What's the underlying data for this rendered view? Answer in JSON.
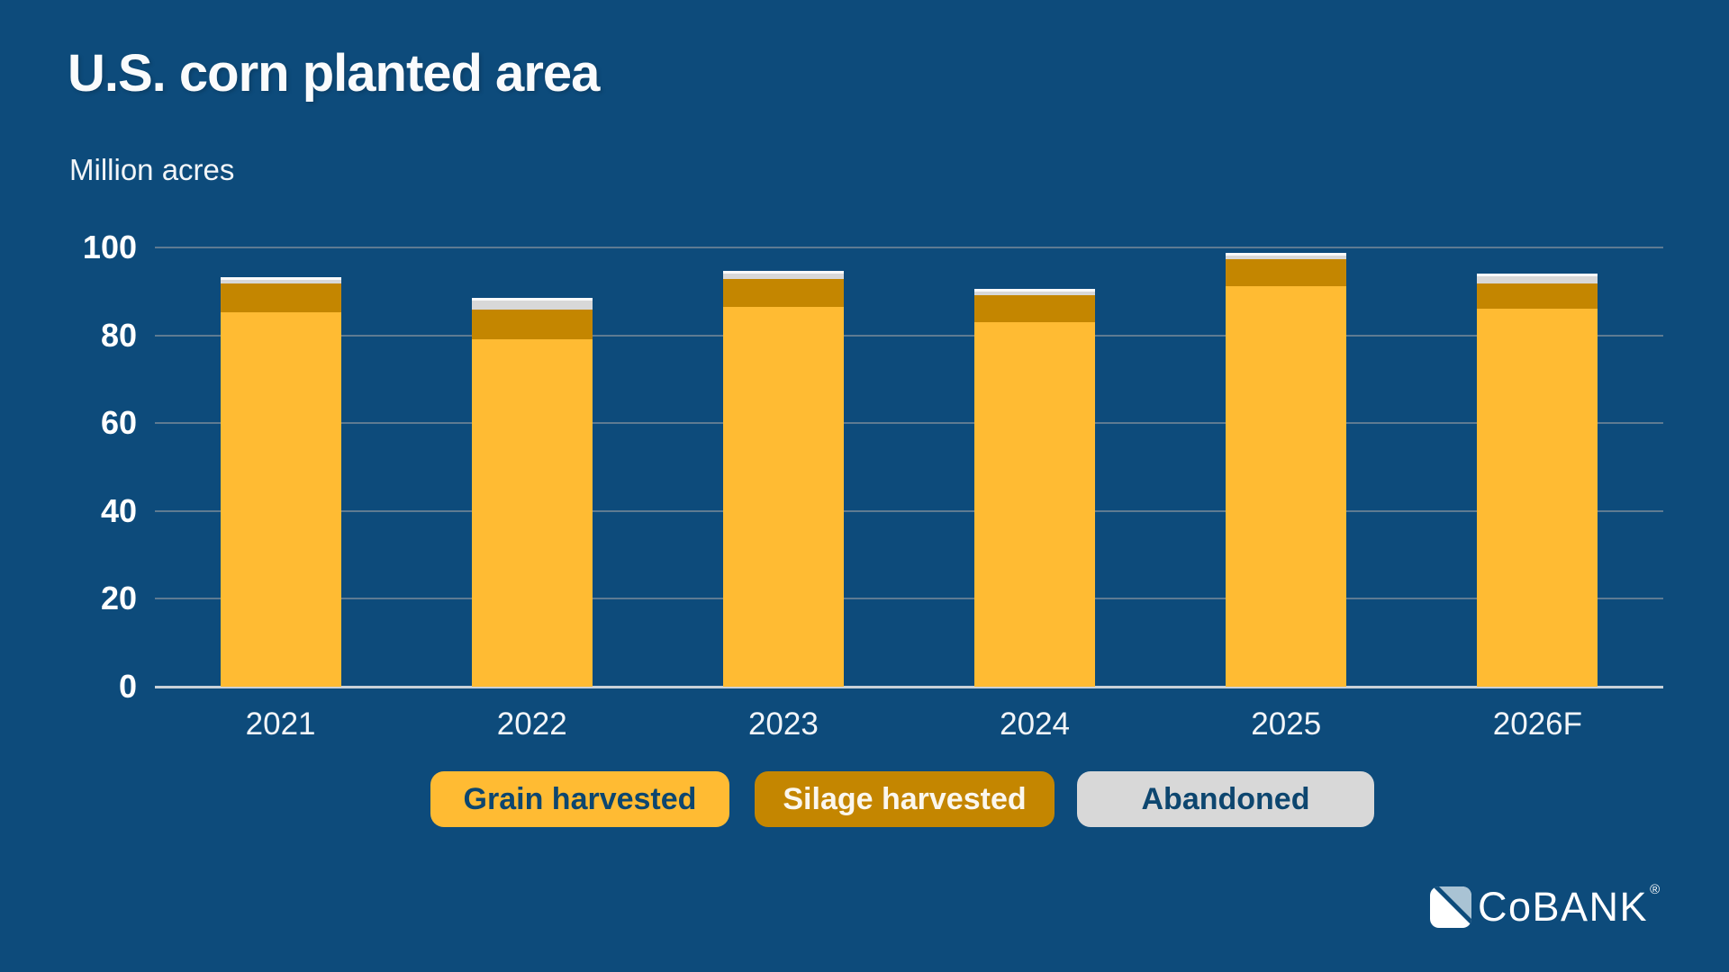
{
  "header": {
    "title": "U.S. corn planted area",
    "units_label": "Million acres"
  },
  "chart_data": {
    "type": "bar",
    "stacked": true,
    "title": "U.S. corn planted area",
    "ylabel": "Million acres",
    "xlabel": "",
    "ylim": [
      0,
      100
    ],
    "yticks": [
      0,
      20,
      40,
      60,
      80,
      100
    ],
    "grid": true,
    "legend_position": "bottom",
    "categories": [
      "2021",
      "2022",
      "2023",
      "2024",
      "2025",
      "2026F"
    ],
    "series": [
      {
        "name": "Grain harvested",
        "color": "#FFBB33",
        "values": [
          85.3,
          79.0,
          86.5,
          83.0,
          91.1,
          86.1
        ]
      },
      {
        "name": "Silage harvested",
        "color": "#C48600",
        "values": [
          6.6,
          6.9,
          6.4,
          6.1,
          6.3,
          5.8
        ]
      },
      {
        "name": "Abandoned",
        "color": "#D8D8D8",
        "values": [
          1.4,
          2.7,
          1.7,
          1.5,
          1.3,
          2.1
        ]
      }
    ]
  },
  "colors": {
    "background": "#0D4B7B",
    "grain": "#FFBB33",
    "silage": "#C48600",
    "abandoned": "#D8D8D8",
    "abandoned_top_edge": "#FAFAFA",
    "gridline": "#5E7B92",
    "axis_baseline": "#C9D1D8",
    "text": "#FFFFFF",
    "legend_dark_text": "#0D466F",
    "logo_mark_light_blue": "#A9C3D4"
  },
  "footer": {
    "brand": "CoBANK",
    "registered_mark": "®"
  }
}
